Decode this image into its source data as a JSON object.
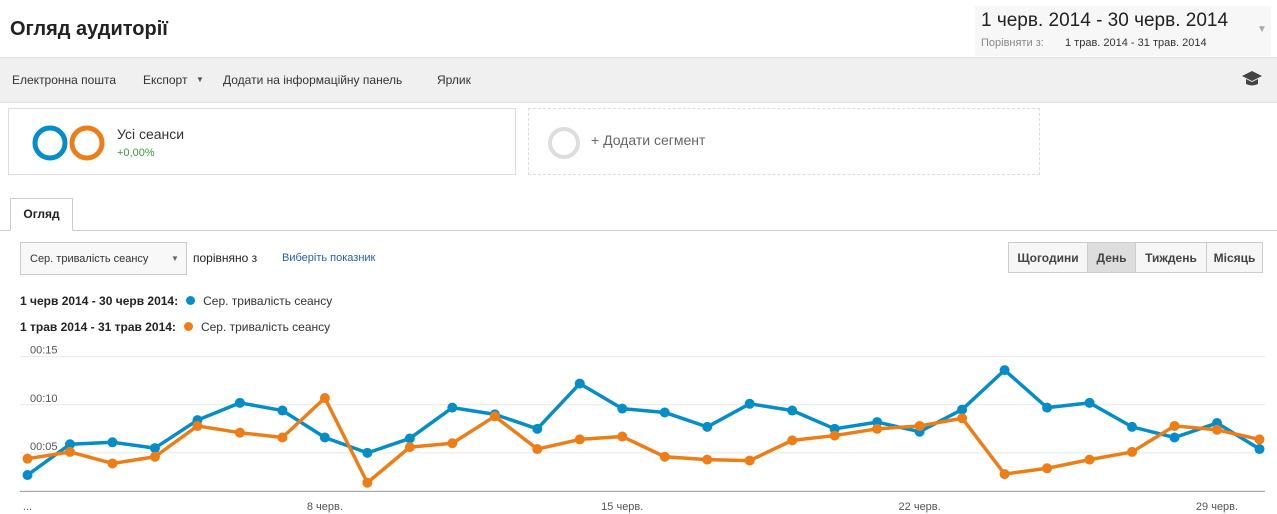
{
  "header": {
    "title": "Огляд аудиторії",
    "date_range": "1 черв. 2014 - 30 черв. 2014",
    "compare_label": "Порівняти з:",
    "compare_range": "1 трав. 2014 - 31 трав. 2014"
  },
  "toolbar": [
    "Електронна пошта",
    "Експорт",
    "Додати на інформаційну панель",
    "Ярлик"
  ],
  "segments": {
    "active": {
      "name": "Усі сеанси",
      "change": "+0,00%"
    },
    "add": "+ Додати сегмент"
  },
  "tab": "Огляд",
  "controls": {
    "metric": "Сер. тривалість сеансу",
    "compare": "порівняно з",
    "select_metric": "Виберіть показник",
    "granularity": [
      "Щогодини",
      "День",
      "Тиждень",
      "Місяць"
    ]
  },
  "chart_data": {
    "type": "line",
    "categories": [
      "...",
      null,
      null,
      null,
      null,
      null,
      null,
      "8 черв.",
      null,
      null,
      null,
      null,
      null,
      null,
      "15 черв.",
      null,
      null,
      null,
      null,
      null,
      null,
      "22 черв.",
      null,
      null,
      null,
      null,
      null,
      null,
      "29 черв.",
      null
    ],
    "series": [
      {
        "period": "1 черв 2014 - 30 черв 2014:",
        "name": "Сер. тривалість сеансу",
        "color": "#058dc7",
        "values": [
          2.7,
          5.9,
          6.1,
          5.5,
          8.4,
          10.2,
          9.4,
          6.6,
          5.0,
          6.5,
          9.7,
          9.0,
          7.5,
          12.2,
          9.6,
          9.2,
          7.7,
          10.1,
          9.4,
          7.5,
          8.2,
          7.2,
          9.5,
          13.6,
          9.7,
          10.2,
          7.7,
          6.6,
          8.1,
          5.4
        ]
      },
      {
        "period": "1 трав 2014 - 31 трав 2014:",
        "name": "Сер. тривалість сеансу",
        "color": "#ed7e17",
        "values": [
          4.4,
          5.1,
          3.9,
          4.6,
          7.8,
          7.1,
          6.6,
          10.7,
          1.9,
          5.6,
          6.0,
          8.8,
          5.4,
          6.4,
          6.7,
          4.6,
          4.3,
          4.2,
          6.3,
          6.8,
          7.5,
          7.8,
          8.6,
          2.8,
          3.4,
          4.3,
          5.1,
          7.8,
          7.4,
          6.4
        ]
      }
    ],
    "ylim": [
      1,
      16
    ],
    "yticks": [
      {
        "value": 5,
        "label": "00:05"
      },
      {
        "value": 10,
        "label": "00:10"
      },
      {
        "value": 15,
        "label": "00:15"
      }
    ],
    "grid": true
  }
}
